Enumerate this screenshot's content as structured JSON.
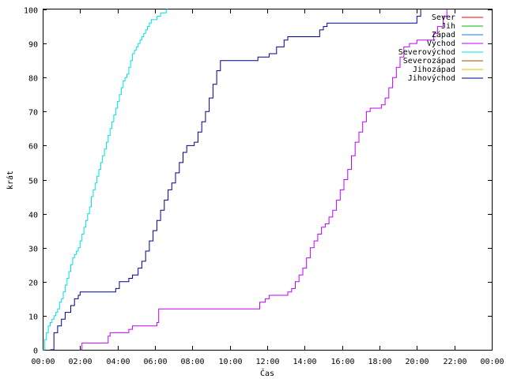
{
  "chart_data": {
    "type": "line",
    "title": "",
    "xlabel": "Čas",
    "ylabel": "krát",
    "xlim": [
      0,
      24
    ],
    "ylim": [
      0,
      100
    ],
    "grid": false,
    "legend_placement": "top-right",
    "x_ticks": [
      {
        "value": 0,
        "label": "00:00"
      },
      {
        "value": 2,
        "label": "02:00"
      },
      {
        "value": 4,
        "label": "04:00"
      },
      {
        "value": 6,
        "label": "06:00"
      },
      {
        "value": 8,
        "label": "08:00"
      },
      {
        "value": 10,
        "label": "10:00"
      },
      {
        "value": 12,
        "label": "12:00"
      },
      {
        "value": 14,
        "label": "14:00"
      },
      {
        "value": 16,
        "label": "16:00"
      },
      {
        "value": 18,
        "label": "18:00"
      },
      {
        "value": 20,
        "label": "20:00"
      },
      {
        "value": 22,
        "label": "22:00"
      },
      {
        "value": 24,
        "label": "00:00"
      }
    ],
    "y_ticks": [
      {
        "value": 0,
        "label": "0"
      },
      {
        "value": 10,
        "label": "10"
      },
      {
        "value": 20,
        "label": "20"
      },
      {
        "value": 30,
        "label": "30"
      },
      {
        "value": 40,
        "label": "40"
      },
      {
        "value": 50,
        "label": "50"
      },
      {
        "value": 60,
        "label": "60"
      },
      {
        "value": 70,
        "label": "70"
      },
      {
        "value": 80,
        "label": "80"
      },
      {
        "value": 90,
        "label": "90"
      },
      {
        "value": 100,
        "label": "100"
      }
    ],
    "series": [
      {
        "name": "Sever",
        "color": "#ff0000",
        "x": [],
        "y": []
      },
      {
        "name": "Jih",
        "color": "#00c000",
        "x": [],
        "y": []
      },
      {
        "name": "Západ",
        "color": "#0080ff",
        "x": [],
        "y": []
      },
      {
        "name": "Východ",
        "color": "#c000ff",
        "step": true,
        "x": [
          2.0,
          2.1,
          3.5,
          3.6,
          4.6,
          4.8,
          6.1,
          6.2,
          11.4,
          11.6,
          11.9,
          12.1,
          12.4,
          13.1,
          13.3,
          13.5,
          13.7,
          13.9,
          14.1,
          14.3,
          14.5,
          14.7,
          14.9,
          15.1,
          15.3,
          15.5,
          15.7,
          15.9,
          16.1,
          16.3,
          16.5,
          16.7,
          16.9,
          17.1,
          17.3,
          17.5,
          17.9,
          18.1,
          18.3,
          18.5,
          18.7,
          18.9,
          19.1,
          19.3,
          19.6,
          20.0,
          20.6,
          20.9,
          21.1,
          21.4,
          21.6
        ],
        "y": [
          0,
          2,
          4,
          5,
          6,
          7,
          8,
          12,
          12,
          14,
          15,
          16,
          16,
          17,
          18,
          20,
          22,
          24,
          27,
          30,
          32,
          34,
          36,
          37,
          39,
          41,
          44,
          47,
          50,
          53,
          57,
          61,
          64,
          67,
          70,
          71,
          71,
          72,
          74,
          77,
          80,
          83,
          86,
          89,
          90,
          91,
          91,
          93,
          95,
          98,
          100
        ]
      },
      {
        "name": "Severovýchod",
        "color": "#00e0e0",
        "step": true,
        "x": [
          0.0,
          0.1,
          0.2,
          0.3,
          0.4,
          0.5,
          0.6,
          0.7,
          0.8,
          0.9,
          1.0,
          1.1,
          1.2,
          1.3,
          1.4,
          1.5,
          1.6,
          1.7,
          1.8,
          1.9,
          2.0,
          2.1,
          2.2,
          2.3,
          2.4,
          2.5,
          2.6,
          2.7,
          2.8,
          2.9,
          3.0,
          3.1,
          3.2,
          3.3,
          3.4,
          3.5,
          3.6,
          3.7,
          3.8,
          3.9,
          4.0,
          4.1,
          4.2,
          4.3,
          4.4,
          4.5,
          4.6,
          4.7,
          4.8,
          4.9,
          5.0,
          5.1,
          5.2,
          5.3,
          5.4,
          5.5,
          5.6,
          5.7,
          5.8,
          5.9,
          6.0,
          6.1,
          6.2,
          6.3,
          6.4,
          6.5,
          6.6,
          6.7
        ],
        "y": [
          0,
          3,
          5,
          7,
          8,
          9,
          10,
          11,
          12,
          14,
          15,
          17,
          19,
          21,
          23,
          25,
          27,
          28,
          29,
          30,
          32,
          34,
          36,
          38,
          40,
          42,
          45,
          47,
          49,
          51,
          53,
          55,
          57,
          59,
          61,
          63,
          65,
          67,
          69,
          71,
          73,
          75,
          77,
          79,
          80,
          81,
          83,
          85,
          87,
          88,
          89,
          90,
          91,
          92,
          93,
          94,
          95,
          96,
          97,
          97,
          97,
          98,
          98,
          99,
          99,
          99,
          100,
          100
        ]
      },
      {
        "name": "Severozápad",
        "color": "#a05000",
        "x": [],
        "y": []
      },
      {
        "name": "Jihozápad",
        "color": "#e0c000",
        "x": [],
        "y": []
      },
      {
        "name": "Jihovýchod",
        "color": "#000090",
        "step": true,
        "x": [
          0.4,
          0.6,
          0.8,
          1.0,
          1.2,
          1.5,
          1.7,
          1.9,
          2.0,
          3.9,
          4.1,
          4.6,
          4.8,
          5.1,
          5.3,
          5.5,
          5.7,
          5.9,
          6.1,
          6.3,
          6.5,
          6.7,
          6.9,
          7.1,
          7.3,
          7.5,
          7.7,
          7.9,
          8.1,
          8.3,
          8.5,
          8.7,
          8.9,
          9.1,
          9.3,
          9.5,
          9.7,
          9.9,
          10.1,
          11.5,
          11.7,
          12.1,
          12.5,
          12.9,
          13.1,
          13.3,
          14.8,
          15.0,
          15.2,
          19.8,
          20.0,
          20.2
        ],
        "y": [
          0,
          5,
          7,
          9,
          11,
          13,
          15,
          16,
          17,
          18,
          20,
          21,
          22,
          24,
          26,
          29,
          32,
          35,
          38,
          41,
          44,
          47,
          49,
          52,
          55,
          58,
          60,
          60,
          61,
          64,
          67,
          70,
          74,
          78,
          82,
          85,
          85,
          85,
          85,
          86,
          86,
          87,
          89,
          91,
          92,
          92,
          94,
          95,
          96,
          96,
          98,
          100
        ]
      }
    ]
  }
}
